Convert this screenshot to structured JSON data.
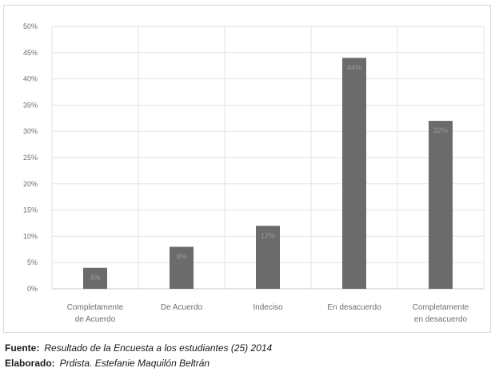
{
  "chart_data": {
    "type": "bar",
    "categories": [
      [
        "Completamente",
        "de Acuerdo"
      ],
      [
        "De Acuerdo"
      ],
      [
        "Indeciso"
      ],
      [
        "En desacuerdo"
      ],
      [
        "Completamente",
        "en desacuerdo"
      ]
    ],
    "values": [
      4,
      8,
      12,
      44,
      32
    ],
    "data_labels": [
      "4%",
      "8%",
      "12%",
      "44%",
      "32%"
    ],
    "ylim": [
      0,
      50
    ],
    "yticks": [
      "0%",
      "5%",
      "10%",
      "15%",
      "20%",
      "25%",
      "30%",
      "35%",
      "40%",
      "45%",
      "50%"
    ],
    "grid": true,
    "bar_color": "#6b6b6b"
  },
  "footer": {
    "source_label": "Fuente:",
    "source_text": "Resultado de la Encuesta a los estudiantes (25) 2014",
    "author_label": "Elaborado:",
    "author_text": "Prdista. Estefanie Maquilón Beltrán"
  }
}
